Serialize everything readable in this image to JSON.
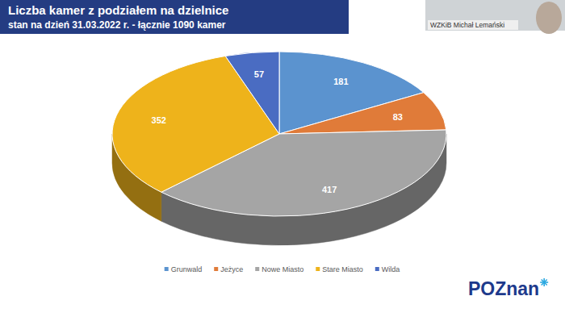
{
  "chart_data": {
    "type": "pie",
    "title": "Liczba kamer z podziałem na dzielnice",
    "subtitle": "stan na dzień 31.03.2022 r. - łącznie 1090 kamer",
    "categories": [
      "Grunwald",
      "Jeżyce",
      "Nowe Miasto",
      "Stare Miasto",
      "Wilda"
    ],
    "values": [
      181,
      83,
      417,
      352,
      57
    ],
    "colors": [
      "#5b93cf",
      "#e07b39",
      "#a5a5a5",
      "#eeb31b",
      "#4a6cc2"
    ],
    "data_labels": true,
    "legend": "bottom"
  },
  "page": {
    "speaker_label": "WZKiB Michał Lemański",
    "logo": "POZnan"
  }
}
